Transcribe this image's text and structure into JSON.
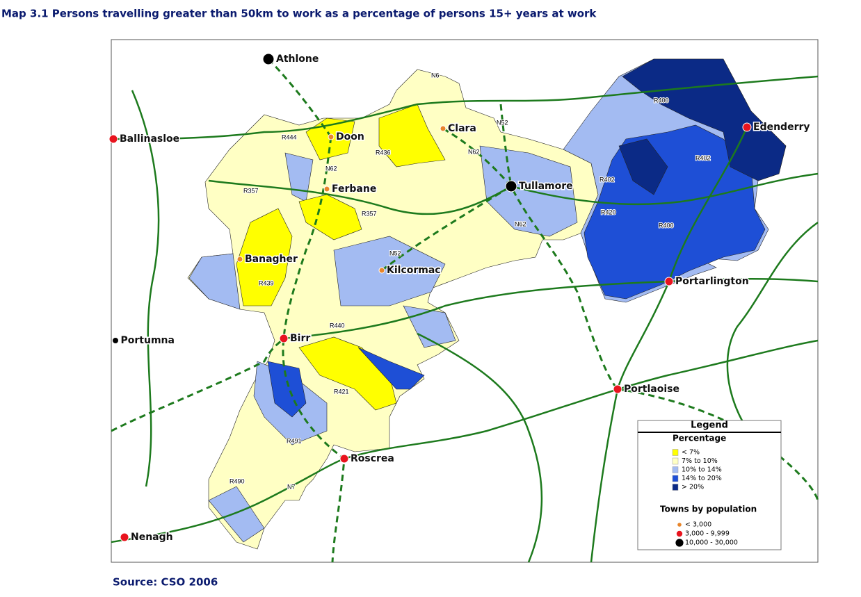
{
  "title": "Map 3.1 Persons travelling greater than 50km to work as a percentage of persons 15+ years at work",
  "source": "Source: CSO 2006",
  "road_labels": [
    "N6",
    "R444",
    "R436",
    "N62",
    "N52",
    "N62",
    "R357",
    "R357",
    "N52",
    "R439",
    "R440",
    "R421",
    "R491",
    "R490",
    "N7",
    "R400",
    "R402",
    "R402",
    "R420",
    "R400",
    "N62"
  ],
  "legend": {
    "title": "Legend",
    "percentage": {
      "title": "Percentage",
      "classes": [
        {
          "label": "< 7%",
          "color": "#ffff00"
        },
        {
          "label": "7% to 10%",
          "color": "#ffffc4"
        },
        {
          "label": "10% to 14%",
          "color": "#a3bbf2"
        },
        {
          "label": "14% to 20%",
          "color": "#1e4fd6"
        },
        {
          "label": "> 20%",
          "color": "#0b2a86"
        }
      ]
    },
    "towns": {
      "title": "Towns by population",
      "classes": [
        {
          "label": "< 3,000",
          "color": "#e8852a",
          "towns": [
            "Doon",
            "Ferbane",
            "Clara",
            "Banagher",
            "Kilcormac"
          ]
        },
        {
          "label": "3,000 - 9,999",
          "color": "#e8141e",
          "towns": [
            "Ballinasloe",
            "Edenderry",
            "Portarlington",
            "Birr",
            "Portlaoise",
            "Roscrea",
            "Nenagh"
          ]
        },
        {
          "label": "10,000 - 30,000",
          "color": "#000000",
          "towns": [
            "Athlone",
            "Tullamore",
            "Portumna"
          ]
        }
      ]
    }
  }
}
